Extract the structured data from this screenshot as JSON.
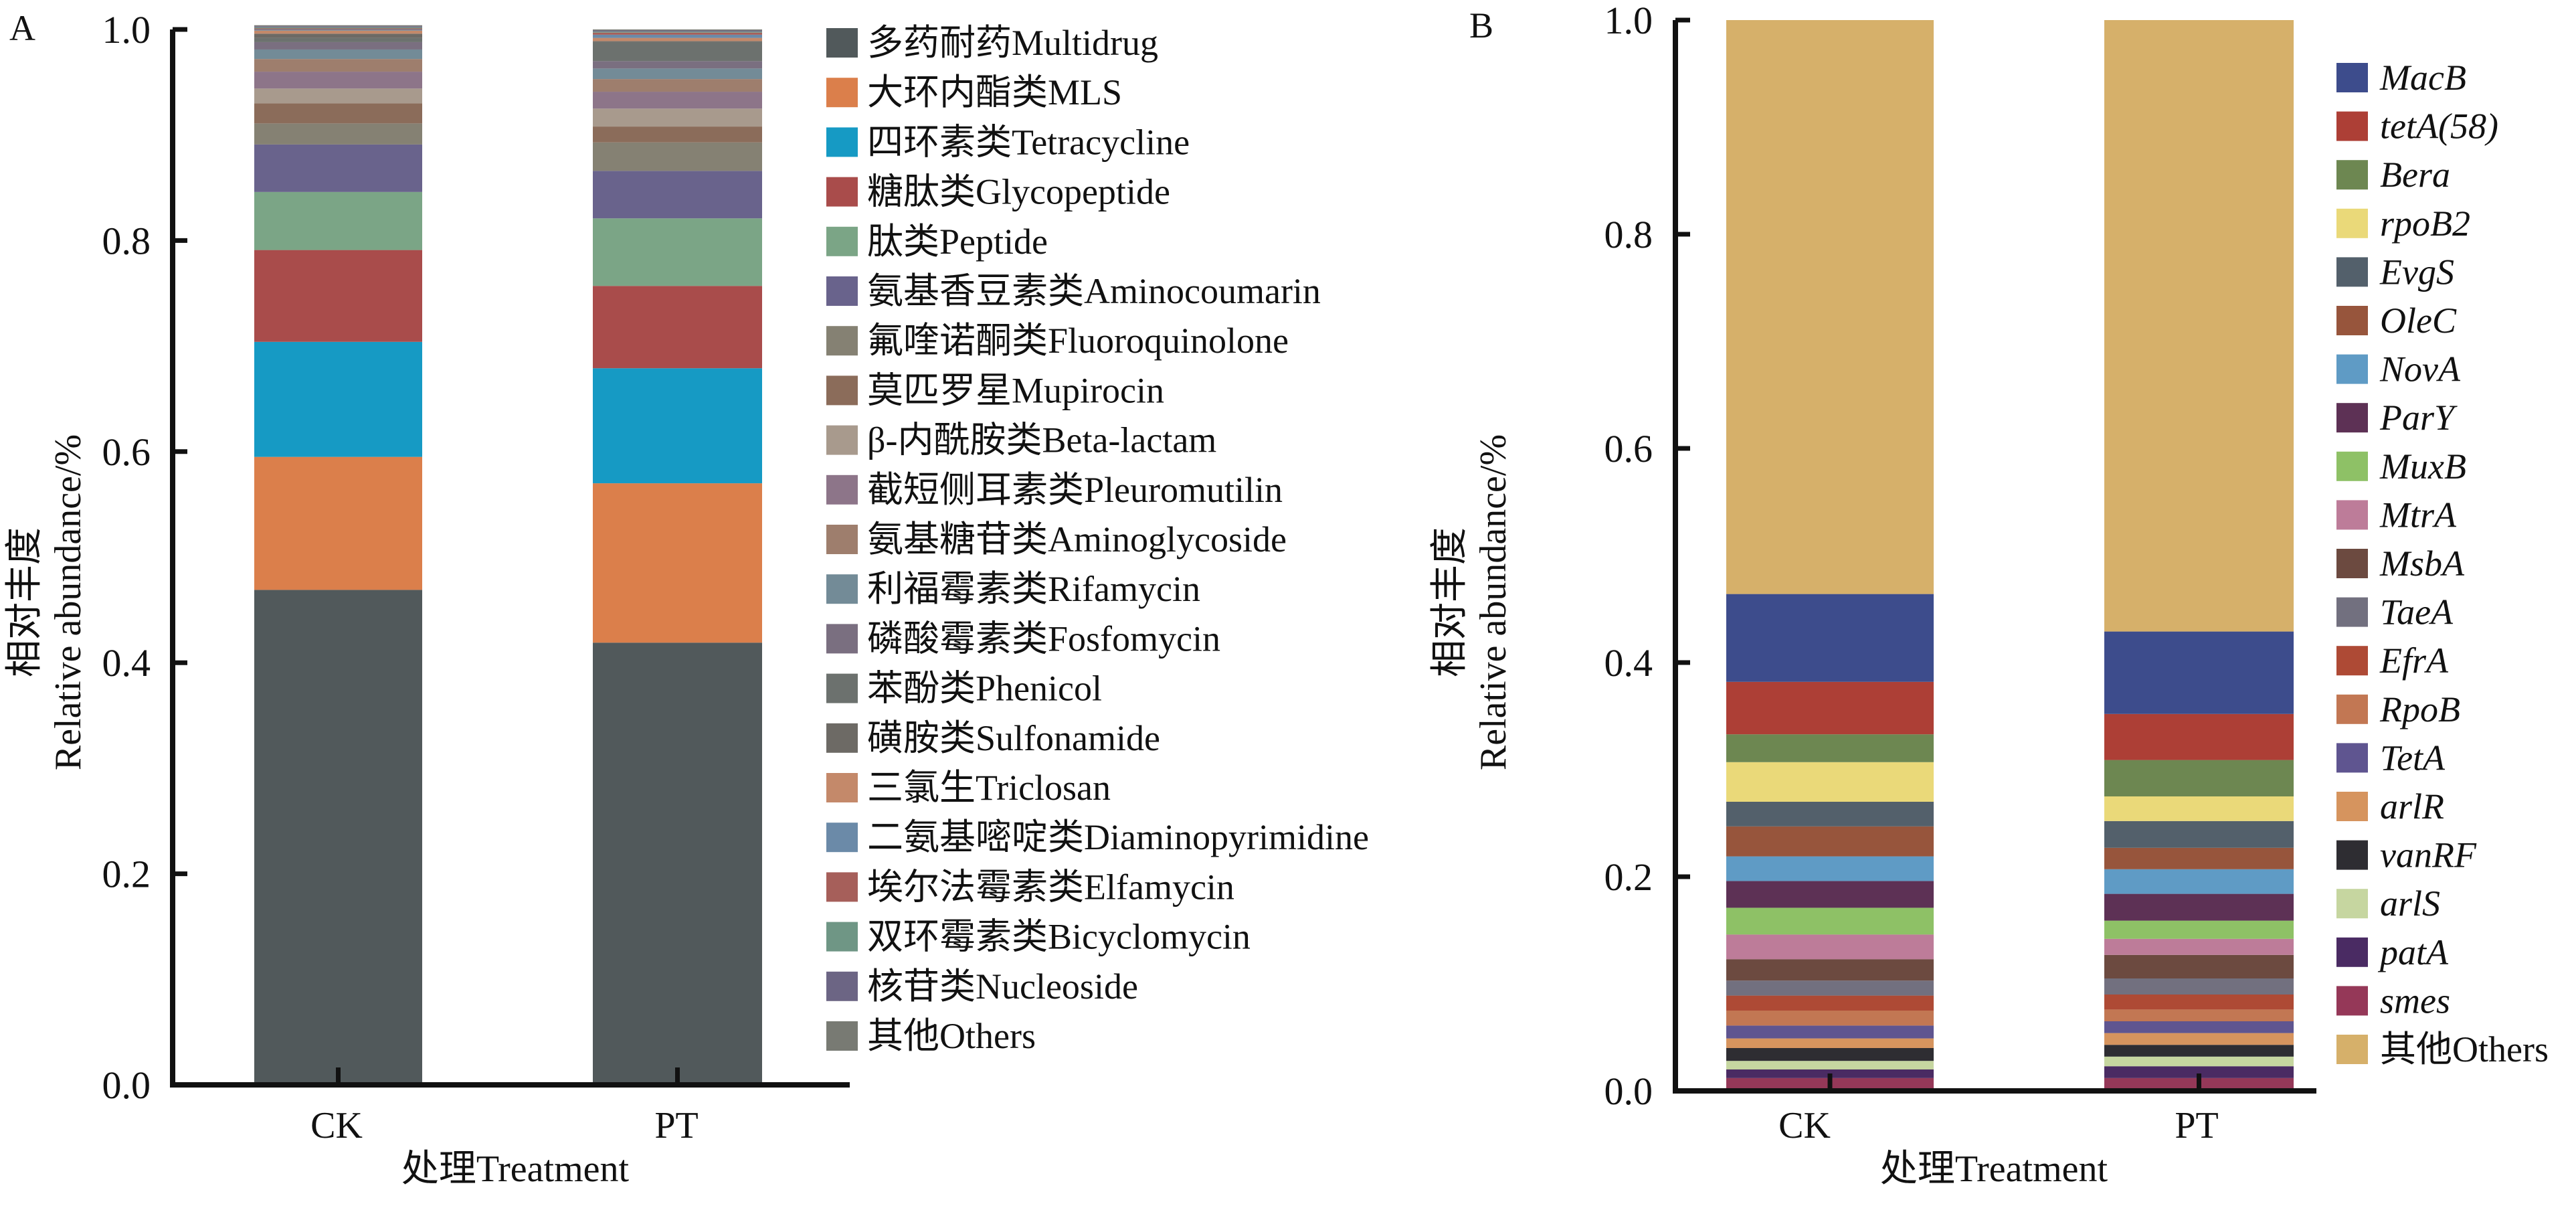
{
  "chart_data": [
    {
      "type": "bar",
      "stacked": true,
      "panel_label": "A",
      "title": "",
      "xlabel": "处理Treatment",
      "ylabel_cn": "相对丰度",
      "ylabel_en": "Relative abundance/%",
      "ylim": [
        0,
        1.0
      ],
      "yticks": [
        "0.0",
        "0.2",
        "0.4",
        "0.6",
        "0.8",
        "1.0"
      ],
      "categories": [
        "CK",
        "PT"
      ],
      "legend_position": "right",
      "series": [
        {
          "name": "多药耐药Multidrug",
          "color": "#51595b",
          "values": [
            0.469,
            0.419
          ]
        },
        {
          "name": "大环内酯类MLS",
          "color": "#db7f4b",
          "values": [
            0.126,
            0.151
          ]
        },
        {
          "name": "四环素类Tetracycline",
          "color": "#169ac4",
          "values": [
            0.109,
            0.109
          ]
        },
        {
          "name": "糖肽类Glycopeptide",
          "color": "#a94c4b",
          "values": [
            0.087,
            0.078
          ]
        },
        {
          "name": "肽类Peptide",
          "color": "#7ba586",
          "values": [
            0.055,
            0.064
          ]
        },
        {
          "name": "氨基香豆素类Aminocoumarin",
          "color": "#69638c",
          "values": [
            0.045,
            0.045
          ]
        },
        {
          "name": "氟喹诺酮类Fluoroquinolone",
          "color": "#858173",
          "values": [
            0.02,
            0.027
          ]
        },
        {
          "name": "莫匹罗星Mupirocin",
          "color": "#8b6c5a",
          "values": [
            0.019,
            0.015
          ]
        },
        {
          "name": "β-内酰胺类Beta-lactam",
          "color": "#a89a8d",
          "values": [
            0.014,
            0.017
          ]
        },
        {
          "name": "截短侧耳素类Pleuromutilin",
          "color": "#8d7589",
          "values": [
            0.016,
            0.016
          ]
        },
        {
          "name": "氨基糖苷类Aminoglycoside",
          "color": "#9e7e6d",
          "values": [
            0.012,
            0.012
          ]
        },
        {
          "name": "利福霉素类Rifamycin",
          "color": "#738b97",
          "values": [
            0.009,
            0.01
          ]
        },
        {
          "name": "磷酸霉素类Fosfomycin",
          "color": "#7a6f80",
          "values": [
            0.007,
            0.007
          ]
        },
        {
          "name": "苯酚类Phenicol",
          "color": "#6c716e",
          "values": [
            0.004,
            0.018
          ]
        },
        {
          "name": "磺胺类Sulfonamide",
          "color": "#6d6a65",
          "values": [
            0.004,
            0.001
          ]
        },
        {
          "name": "三氯生Triclosan",
          "color": "#c4896a",
          "values": [
            0.003,
            0.003
          ]
        },
        {
          "name": "二氨基嘧啶类Diaminopyrimidine",
          "color": "#6b8aa8",
          "values": [
            0.001,
            0.003
          ]
        },
        {
          "name": "埃尔法霉素类Elfamycin",
          "color": "#a65f5a",
          "values": [
            0.001,
            0.002
          ]
        },
        {
          "name": "双环霉素类Bicyclomycin",
          "color": "#6f9685",
          "values": [
            0.001,
            0.001
          ]
        },
        {
          "name": "核苷类Nucleoside",
          "color": "#6c6584",
          "values": [
            0.001,
            0.001
          ]
        },
        {
          "name": "其他Others",
          "color": "#787a73",
          "values": [
            0.001,
            0.001
          ]
        }
      ]
    },
    {
      "type": "bar",
      "stacked": true,
      "panel_label": "B",
      "title": "",
      "xlabel": "处理Treatment",
      "ylabel_cn": "相对丰度",
      "ylabel_en": "Relative abundance/%",
      "ylim": [
        0,
        1.0
      ],
      "yticks": [
        "0.0",
        "0.2",
        "0.4",
        "0.6",
        "0.8",
        "1.0"
      ],
      "categories": [
        "CK",
        "PT"
      ],
      "legend_position": "right",
      "series": [
        {
          "name": "smes",
          "italic": true,
          "color": "#953858",
          "values": [
            0.012,
            0.012
          ]
        },
        {
          "name": "patA",
          "italic": true,
          "color": "#4a2b63",
          "values": [
            0.008,
            0.011
          ]
        },
        {
          "name": "arlS",
          "italic": true,
          "color": "#c6d6a0",
          "values": [
            0.008,
            0.009
          ]
        },
        {
          "name": "vanRF",
          "italic": true,
          "color": "#2e2d32",
          "values": [
            0.012,
            0.011
          ]
        },
        {
          "name": "arlR",
          "italic": true,
          "color": "#d6945e",
          "values": [
            0.009,
            0.011
          ]
        },
        {
          "name": "TetA",
          "italic": true,
          "color": "#5f5590",
          "values": [
            0.012,
            0.011
          ]
        },
        {
          "name": "RpoB",
          "italic": true,
          "color": "#c27753",
          "values": [
            0.014,
            0.011
          ]
        },
        {
          "name": "EfrA",
          "italic": true,
          "color": "#ae4a35",
          "values": [
            0.014,
            0.014
          ]
        },
        {
          "name": "TaeA",
          "italic": true,
          "color": "#72707f",
          "values": [
            0.014,
            0.015
          ]
        },
        {
          "name": "MsbA",
          "italic": true,
          "color": "#6c4a40",
          "values": [
            0.02,
            0.022
          ]
        },
        {
          "name": "MtrA",
          "italic": true,
          "color": "#bd7c99",
          "values": [
            0.023,
            0.015
          ]
        },
        {
          "name": "MuxB",
          "italic": true,
          "color": "#8ec166",
          "values": [
            0.025,
            0.017
          ]
        },
        {
          "name": "ParY",
          "italic": true,
          "color": "#5d3155",
          "values": [
            0.025,
            0.025
          ]
        },
        {
          "name": "NovA",
          "italic": true,
          "color": "#5f9bc5",
          "values": [
            0.023,
            0.023
          ]
        },
        {
          "name": "OleC",
          "italic": true,
          "color": "#97553c",
          "values": [
            0.028,
            0.02
          ]
        },
        {
          "name": "EvgS",
          "italic": true,
          "color": "#53606b",
          "values": [
            0.023,
            0.025
          ]
        },
        {
          "name": "rpoB2",
          "italic": true,
          "color": "#ead979",
          "values": [
            0.037,
            0.023
          ]
        },
        {
          "name": "Bera",
          "italic": true,
          "color": "#6d8751",
          "values": [
            0.026,
            0.034
          ]
        },
        {
          "name": "tetA(58)",
          "italic": true,
          "color": "#ad3f36",
          "values": [
            0.049,
            0.043
          ]
        },
        {
          "name": "MacB",
          "italic": true,
          "color": "#3d4c8c",
          "values": [
            0.082,
            0.077
          ]
        },
        {
          "name": "其他Others",
          "italic": false,
          "color": "#d6b06a",
          "values": [
            0.536,
            0.571
          ]
        }
      ],
      "legend_order": [
        "MacB",
        "tetA(58)",
        "Bera",
        "rpoB2",
        "EvgS",
        "OleC",
        "NovA",
        "ParY",
        "MuxB",
        "MtrA",
        "MsbA",
        "TaeA",
        "EfrA",
        "RpoB",
        "TetA",
        "arlR",
        "vanRF",
        "arlS",
        "patA",
        "smes",
        "其他Others"
      ]
    }
  ]
}
